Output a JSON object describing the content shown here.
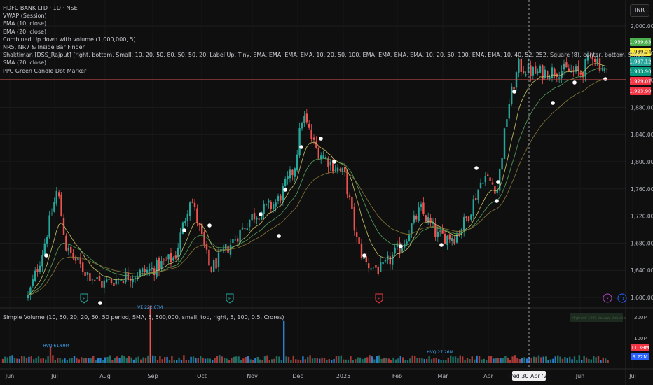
{
  "header": {
    "symbol_line": "HDFC BANK LTD · 1D · NSE",
    "currency": "INR"
  },
  "indicators": [
    "VWAP (Session)",
    "EMA (10, close)",
    "EMA (20, close)",
    "Combined Up down with volume (1,000,000, 5)",
    "NR5, NR7 & Inside Bar Finder",
    "Shaktiman [DSS_Rajput] (right, bottom, Small, 10, 20, 50, 80, 50, 50, 20, Label Up, Tiny, EMA, EMA, EMA, EMA, 10, 20, 50, 100, EMA, EMA, EMA, EMA, 10, 20, 50, 100, EMA, EMA, 10, 40, 52, 252, Square (8), center, bottom, Small)",
    "SMA (20, close)",
    "PPC Green Candle Dot Marker"
  ],
  "volume_pane": {
    "legend": "Simple Volume (10, 50, 20, 20, 50, 50 period, SMA, 5, 500,000, small, top, right, 5, 100, 0.5, Crores)",
    "annotations": [
      {
        "text": "HVE 222.67M",
        "color": "#42a5f5"
      },
      {
        "text": "HVQ 61.69M",
        "color": "#42a5f5"
      },
      {
        "text": "HVQ 27.26M",
        "color": "#42a5f5"
      }
    ],
    "axis_labels": [
      "200M",
      "100M"
    ],
    "last_labels": [
      {
        "text": "11.39M",
        "color": "#f23645"
      },
      {
        "text": "9.22M",
        "color": "#2962ff"
      }
    ],
    "mini_panel": [
      "Highest 10% Vol",
      "Low Volume"
    ]
  },
  "chart_data": {
    "type": "candlestick",
    "price_ticks": [
      2000,
      1960,
      1920,
      1880,
      1840,
      1800,
      1760,
      1720,
      1680,
      1640,
      1600
    ],
    "price_tick_labels": [
      "2,000.00",
      "1,960.00",
      "1,920.00",
      "1,880.00",
      "1,840.00",
      "1,800.00",
      "1,760.00",
      "1,720.00",
      "1,680.00",
      "1,640.00",
      "1,600.00"
    ],
    "ylim": [
      1600,
      2000
    ],
    "x_labels": [
      "Jun",
      "Jul",
      "Aug",
      "Sep",
      "Oct",
      "Nov",
      "Dec",
      "2025",
      "Feb",
      "Mar",
      "Apr",
      "Jun",
      "Jul"
    ],
    "crosshair_label": "Wed 30 Apr '25",
    "price_markers": [
      {
        "text": "1,939.83",
        "color": "#4caf50"
      },
      {
        "text": "1,939.24",
        "color": "#ffeb3b"
      },
      {
        "text": "1,937.12",
        "color": "#26a69a"
      },
      {
        "text": "1,933.90",
        "color": "#089981"
      },
      {
        "text": "1,929.07",
        "color": "#f23645"
      },
      {
        "text": "1,923.90",
        "color": "#f23645"
      }
    ],
    "pane_markers": [
      {
        "glyph": "E",
        "color": "#26a69a"
      },
      {
        "glyph": "E",
        "color": "#26a69a"
      },
      {
        "glyph": "E",
        "color": "#f23645"
      },
      {
        "glyph": "⚡",
        "color": "#ab47bc"
      },
      {
        "glyph": "D",
        "color": "#2962ff"
      }
    ],
    "volume_ticks": [
      200,
      100
    ],
    "monthly_closes": [
      {
        "month": "Jun",
        "close": 1600
      },
      {
        "month": "Jul",
        "close": 1665
      },
      {
        "month": "Aug",
        "close": 1635
      },
      {
        "month": "Sep",
        "close": 1650
      },
      {
        "month": "Oct",
        "close": 1710
      },
      {
        "month": "Nov",
        "close": 1770
      },
      {
        "month": "Dec",
        "close": 1835
      },
      {
        "month": "2025",
        "close": 1775
      },
      {
        "month": "Feb",
        "close": 1680
      },
      {
        "month": "Mar",
        "close": 1720
      },
      {
        "month": "Apr",
        "close": 1900
      },
      {
        "month": "May",
        "close": 1930
      },
      {
        "month": "Jun",
        "close": 1935
      }
    ],
    "colors": {
      "up": "#26a69a",
      "down": "#ef5350",
      "ema10": "#c9c56a",
      "ema20": "#57a35e",
      "sma20": "#8a7a3a",
      "vwap": "#d9534f"
    }
  }
}
